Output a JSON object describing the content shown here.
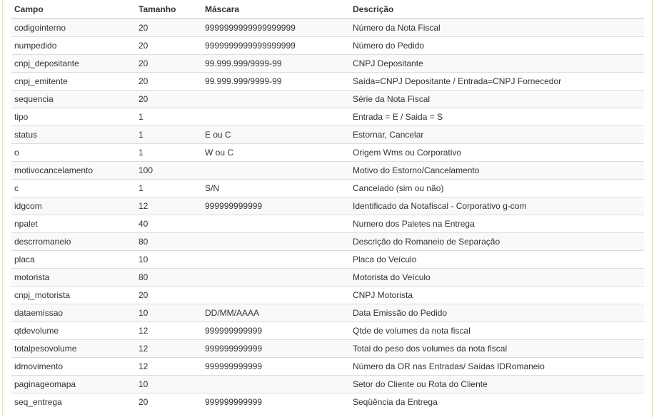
{
  "headers": [
    "Campo",
    "Tamanho",
    "Máscara",
    "Descrição"
  ],
  "rows": [
    [
      "codigointerno",
      "20",
      "9999999999999999999",
      "Número da Nota Fiscal"
    ],
    [
      "numpedido",
      "20",
      "9999999999999999999",
      "Número do Pedido"
    ],
    [
      "cnpj_depositante",
      "20",
      "99.999.999/9999-99",
      "CNPJ Depositante"
    ],
    [
      "cnpj_emitente",
      "20",
      "99.999.999/9999-99",
      "Saída=CNPJ Depositante / Entrada=CNPJ Fornecedor"
    ],
    [
      "sequencia",
      "20",
      "",
      "Série da Nota Fiscal"
    ],
    [
      "tipo",
      "1",
      "",
      "Entrada = E / Saida = S"
    ],
    [
      "status",
      "1",
      "E ou C",
      "Estornar, Cancelar"
    ],
    [
      "o",
      "1",
      "W ou C",
      "Origem Wms ou Corporativo"
    ],
    [
      "motivocancelamento",
      "100",
      "",
      "Motivo do Estorno/Cancelamento"
    ],
    [
      "c",
      "1",
      "S/N",
      "Cancelado (sim ou não)"
    ],
    [
      "idgcom",
      "12",
      "999999999999",
      "Identificado da Notafiscal - Corporativo g-com"
    ],
    [
      "npalet",
      "40",
      "",
      "Numero dos Paletes na Entrega"
    ],
    [
      "descrromaneio",
      "80",
      "",
      "Descrição do Romaneio de Separação"
    ],
    [
      "placa",
      "10",
      "",
      "Placa do Veículo"
    ],
    [
      "motorista",
      "80",
      "",
      "Motorista do Veículo"
    ],
    [
      "cnpj_motorista",
      "20",
      "",
      "CNPJ Motorista"
    ],
    [
      "dataemissao",
      "10",
      "DD/MM/AAAA",
      "Data Emissão do Pedido"
    ],
    [
      "qtdevolume",
      "12",
      "999999999999",
      "Qtde de volumes da nota fiscal"
    ],
    [
      "totalpesovolume",
      "12",
      "999999999999",
      "Total do peso dos volumes da nota fiscal"
    ],
    [
      "idmovimento",
      "12",
      "999999999999",
      "Número da OR nas Entradas/ Saídas IDRomaneio"
    ],
    [
      "paginageomapa",
      "10",
      "",
      "Setor do Cliente ou Rota do Cliente"
    ],
    [
      "seq_entrega",
      "20",
      "999999999999",
      "Seqüência da Entrega"
    ]
  ]
}
